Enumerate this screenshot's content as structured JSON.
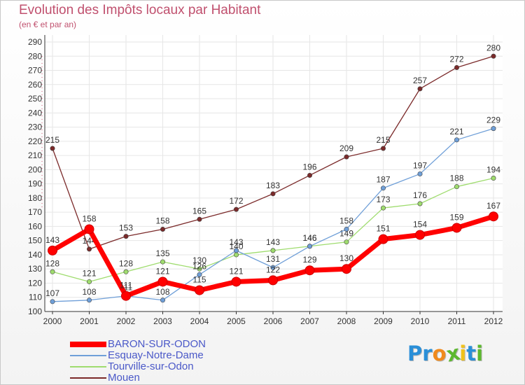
{
  "chart_data": {
    "type": "line",
    "title": "Evolution des Impôts locaux par Habitant",
    "subtitle": "(en € et par an)",
    "xlabel": "",
    "ylabel": "",
    "ylim": [
      100,
      290
    ],
    "yticks": [
      100,
      110,
      120,
      130,
      140,
      150,
      160,
      170,
      180,
      190,
      200,
      210,
      220,
      230,
      240,
      250,
      260,
      270,
      280,
      290
    ],
    "categories": [
      "2000",
      "2001",
      "2002",
      "2003",
      "2004",
      "2005",
      "2006",
      "2007",
      "2008",
      "2009",
      "2010",
      "2011",
      "2012"
    ],
    "series": [
      {
        "name": "BARON-SUR-ODON",
        "color": "#ff0000",
        "values": [
          143,
          158,
          111,
          121,
          115,
          121,
          122,
          129,
          130,
          151,
          154,
          159,
          167
        ]
      },
      {
        "name": "Esquay-Notre-Dame",
        "color": "#6f9fd8",
        "values": [
          107,
          108,
          111,
          108,
          126,
          143,
          131,
          146,
          158,
          187,
          197,
          221,
          229
        ]
      },
      {
        "name": "Tourville-sur-Odon",
        "color": "#9fdc6e",
        "values": [
          128,
          121,
          128,
          135,
          130,
          140,
          143,
          146,
          149,
          173,
          176,
          188,
          194
        ]
      },
      {
        "name": "Mouen",
        "color": "#7b2a2a",
        "values": [
          215,
          144,
          153,
          158,
          165,
          172,
          183,
          196,
          209,
          215,
          257,
          272,
          280
        ]
      }
    ],
    "legend_position": "bottom-left",
    "grid": true
  },
  "logo": {
    "text": "Proxiti",
    "letters": [
      "P",
      "r",
      "o",
      "x",
      "i",
      "t",
      "i"
    ],
    "colors": [
      "#2a8fd8",
      "#2a8fd8",
      "#f08a1c",
      "#5cb82e",
      "#f0c21c",
      "#2a8fd8",
      "#5cb82e"
    ]
  }
}
